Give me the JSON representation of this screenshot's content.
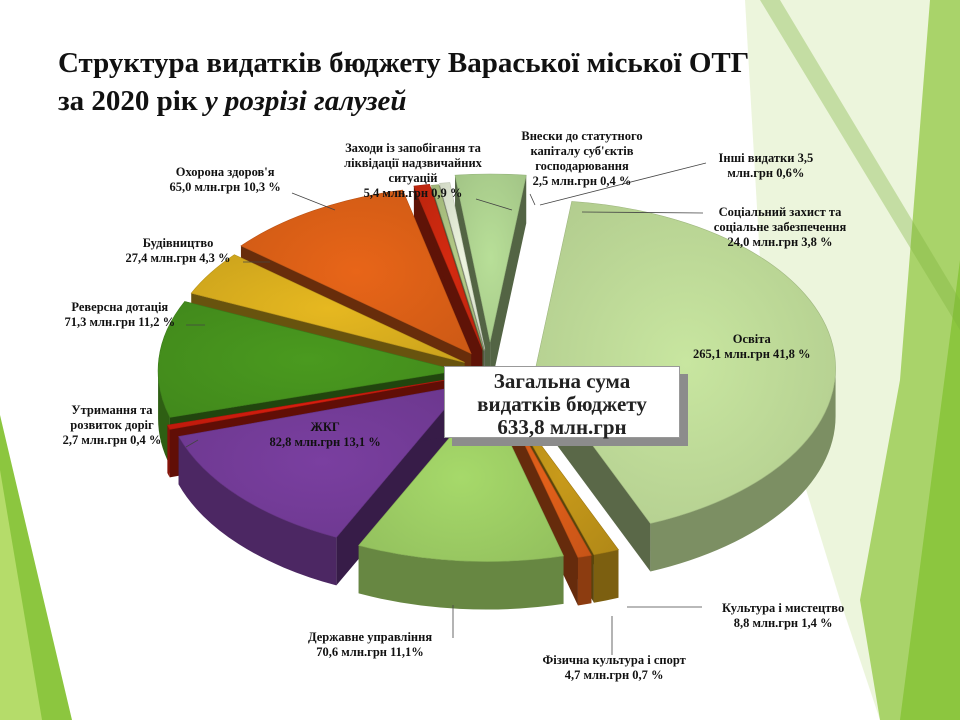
{
  "title": {
    "line1": "Структура видатків бюджету Вараської міської ОТГ",
    "line2_plain": "за 2020 рік",
    "line2_italic": "у розрізі галузей"
  },
  "center_label": {
    "line1": "Загальна сума",
    "line2": "видатків бюджету",
    "line3": "633,8 млн.грн"
  },
  "chart_data": {
    "type": "pie",
    "title": "Структура видатків бюджету Вараської міської ОТГ за 2020 рік у розрізі галузей",
    "unit": "млн.грн",
    "total": 633.8,
    "slices": [
      {
        "name": "Освіта",
        "value": 265.1,
        "percent": 41.8,
        "color": "#c8e6a0",
        "label": "Освіта",
        "value_label": "265,1 млн.грн   41,8 %"
      },
      {
        "name": "Культура і мистецтво",
        "value": 8.8,
        "percent": 1.4,
        "color": "#c89a1a",
        "label": "Культура і мистецтво",
        "value_label": "8,8 млн.грн   1,4 %"
      },
      {
        "name": "Фізична культура і спорт",
        "value": 4.7,
        "percent": 0.7,
        "color": "#e2601a",
        "label": "Фізична культура і спорт",
        "value_label": "4,7 млн.грн   0,7 %"
      },
      {
        "name": "Державне управління",
        "value": 70.6,
        "percent": 11.1,
        "color": "#a6d96a",
        "label": "Державне управління",
        "value_label": "70,6 млн.грн   11,1%"
      },
      {
        "name": "ЖКГ",
        "value": 82.8,
        "percent": 13.1,
        "color": "#7a3fa0",
        "label": "ЖКГ",
        "value_label": "82,8 млн.грн  13,1 %"
      },
      {
        "name": "Утримання та розвиток доріг",
        "value": 2.7,
        "percent": 0.4,
        "color": "#d81e0e",
        "label": "Утримання та розвиток доріг",
        "value_label": "2,7 млн.грн   0,4 %"
      },
      {
        "name": "Реверсна дотація",
        "value": 71.3,
        "percent": 11.2,
        "color": "#4a9a1f",
        "label": "Реверсна дотація",
        "value_label": "71,3 млн.грн  11,2 %"
      },
      {
        "name": "Будівництво",
        "value": 27.4,
        "percent": 4.3,
        "color": "#e6b820",
        "label": "Будівництво",
        "value_label": "27,4 млн.грн  4,3 %"
      },
      {
        "name": "Охорона здоров'я",
        "value": 65.0,
        "percent": 10.3,
        "color": "#e86518",
        "label": "Охорона здоров'я",
        "value_label": "65,0 млн.грн  10,3 %"
      },
      {
        "name": "Заходи із запобігання та ліквідації надзвичайних ситуацій",
        "value": 5.4,
        "percent": 0.9,
        "color": "#d42a10",
        "label": "Заходи із запобігання та ліквідації надзвичайних ситуацій",
        "value_label": "5,4 млн.грн   0,9 %"
      },
      {
        "name": "Внески до статутного капіталу суб'єктів господарювання",
        "value": 2.5,
        "percent": 0.4,
        "color": "#b5cc88",
        "label": "Внески до статутного капіталу суб'єктів господарювання",
        "value_label": "2,5 млн.грн 0,4 %"
      },
      {
        "name": "Інші видатки",
        "value": 3.5,
        "percent": 0.6,
        "color": "#eef6e0",
        "label": "Інші видатки 3,5",
        "value_label": "млн.грн 0,6%"
      },
      {
        "name": "Соціальний захист та соціальне забезпечення",
        "value": 24.0,
        "percent": 3.8,
        "color": "#b8df98",
        "label": "Соціальний захист та соціальне забезпечення",
        "value_label": "24,0  млн.грн 3,8 %"
      }
    ]
  }
}
